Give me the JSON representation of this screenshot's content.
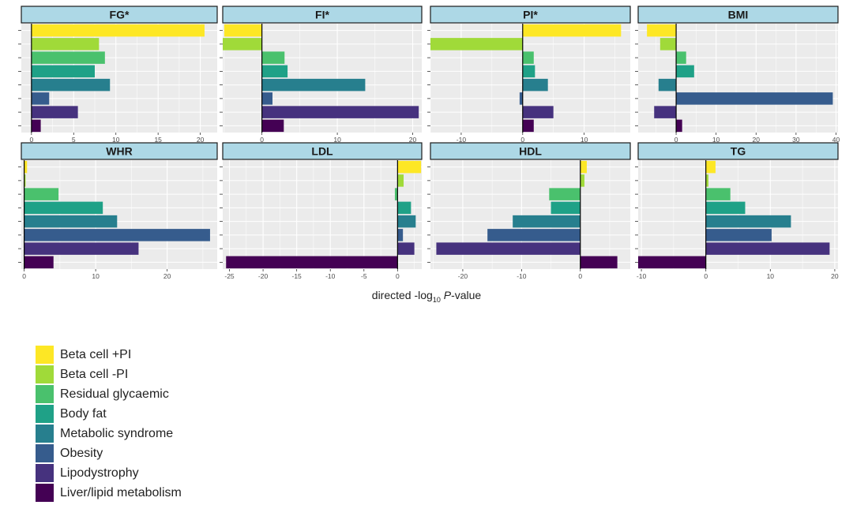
{
  "chart_data": {
    "type": "bar",
    "orientation": "horizontal",
    "grid": true,
    "xlabel_prefix": "directed -log",
    "xlabel_sub": "10",
    "xlabel_italic": "P",
    "xlabel_suffix": "-value",
    "series": [
      {
        "name": "Beta cell +PI",
        "color": "#FDE725"
      },
      {
        "name": "Beta cell -PI",
        "color": "#A0DA39"
      },
      {
        "name": "Residual glycaemic",
        "color": "#4AC16D"
      },
      {
        "name": "Body fat",
        "color": "#1FA187"
      },
      {
        "name": "Metabolic syndrome",
        "color": "#277F8E"
      },
      {
        "name": "Obesity",
        "color": "#365C8D"
      },
      {
        "name": "Lipodystrophy",
        "color": "#46327E"
      },
      {
        "name": "Liver/lipid metabolism",
        "color": "#440154"
      }
    ],
    "panels": [
      {
        "title": "FG*",
        "xlim": [
          -1.2,
          22
        ],
        "ticks": [
          0,
          5,
          10,
          15,
          20
        ],
        "values": [
          20.5,
          8,
          8.7,
          7.5,
          9.3,
          2.1,
          5.5,
          1.1
        ]
      },
      {
        "title": "FI*",
        "xlim": [
          -5.2,
          21.2
        ],
        "ticks": [
          0,
          10,
          20
        ],
        "values": [
          -5,
          -5.2,
          3,
          3.4,
          13.7,
          1.4,
          20.8,
          2.9
        ]
      },
      {
        "title": "PI*",
        "xlim": [
          -15,
          17.5
        ],
        "ticks": [
          -10,
          0,
          10
        ],
        "values": [
          16,
          -15,
          1.8,
          2,
          4.1,
          -0.5,
          5,
          1.8
        ]
      },
      {
        "title": "BMI",
        "xlim": [
          -9.5,
          40.5
        ],
        "ticks": [
          0,
          10,
          20,
          30,
          40
        ],
        "values": [
          -7.3,
          -4,
          2.5,
          4.5,
          -4.4,
          39.2,
          -5.5,
          1.5
        ]
      },
      {
        "title": "WHR",
        "xlim": [
          -0.4,
          27
        ],
        "ticks": [
          0,
          10,
          20
        ],
        "values": [
          0.4,
          0.2,
          4.8,
          11,
          13,
          26,
          16,
          4.1
        ]
      },
      {
        "title": "LDL",
        "xlim": [
          -26,
          3.6
        ],
        "ticks": [
          -25,
          -20,
          -15,
          -10,
          -5,
          0
        ],
        "values": [
          3.5,
          0.9,
          -0.4,
          2,
          2.7,
          0.8,
          2.5,
          -25.5
        ]
      },
      {
        "title": "HDL",
        "xlim": [
          -25.5,
          8.5
        ],
        "ticks": [
          -20,
          -10,
          0
        ],
        "values": [
          1.1,
          0.7,
          -5.3,
          -5,
          -11.5,
          -15.8,
          -24.5,
          6.3
        ]
      },
      {
        "title": "TG",
        "xlim": [
          -10.5,
          20.5
        ],
        "ticks": [
          -10,
          0,
          10,
          20
        ],
        "values": [
          1.5,
          0.4,
          3.8,
          6.1,
          13.2,
          10.2,
          19.2,
          -10.5
        ]
      }
    ]
  }
}
